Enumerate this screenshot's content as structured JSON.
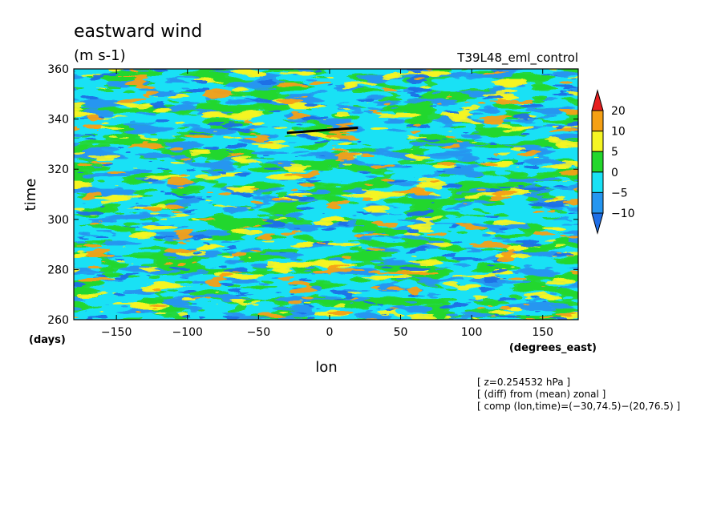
{
  "chart_data": {
    "type": "heatmap",
    "title": "eastward wind",
    "units": "(m s-1)",
    "experiment": "T39L48_eml_control",
    "xlabel": "lon",
    "ylabel": "time",
    "x_units": "(degrees_east)",
    "y_units": "(days)",
    "xlim": [
      -180,
      175
    ],
    "ylim": [
      260,
      360
    ],
    "x_ticks": [
      -150,
      -100,
      -50,
      0,
      50,
      100,
      150
    ],
    "y_ticks": [
      260,
      280,
      300,
      320,
      340,
      360
    ],
    "colorbar": {
      "levels": [
        -10,
        -5,
        0,
        5,
        10,
        20
      ],
      "tick_labels": [
        "20",
        "10",
        "5",
        "0",
        "-5",
        "-10"
      ],
      "colors": [
        "#1e6ee6",
        "#2596f0",
        "#19e1f5",
        "#23d72d",
        "#f5f523",
        "#f5a014",
        "#e61e1e"
      ]
    },
    "composite_line": {
      "lon": [
        -30,
        20
      ],
      "time": [
        334.5,
        336.5
      ]
    },
    "annotations": [
      "[ z=0.254532 hPa ]",
      "[ (diff) from (mean) zonal ]",
      "[ comp (lon,time)=(-30,74.5)-(20,76.5) ]"
    ]
  }
}
